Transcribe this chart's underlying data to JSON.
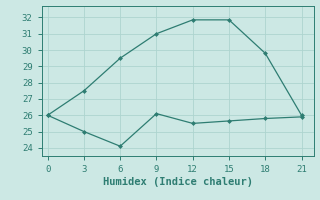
{
  "x": [
    0,
    3,
    6,
    9,
    12,
    15,
    18,
    21
  ],
  "y_main": [
    26,
    27.5,
    29.5,
    31.0,
    31.85,
    31.85,
    29.8,
    26.0
  ],
  "y_secondary": [
    26,
    25.0,
    24.1,
    26.1,
    25.5,
    25.65,
    25.8,
    25.9
  ],
  "line_color": "#2e7d72",
  "bg_color": "#cce8e4",
  "grid_color": "#aed4cf",
  "xlabel": "Humidex (Indice chaleur)",
  "ylim": [
    23.5,
    32.7
  ],
  "xlim": [
    -0.5,
    22.0
  ],
  "yticks": [
    24,
    25,
    26,
    27,
    28,
    29,
    30,
    31,
    32
  ],
  "xticks": [
    0,
    3,
    6,
    9,
    12,
    15,
    18,
    21
  ],
  "label_fontsize": 7.5,
  "tick_fontsize": 6.5
}
